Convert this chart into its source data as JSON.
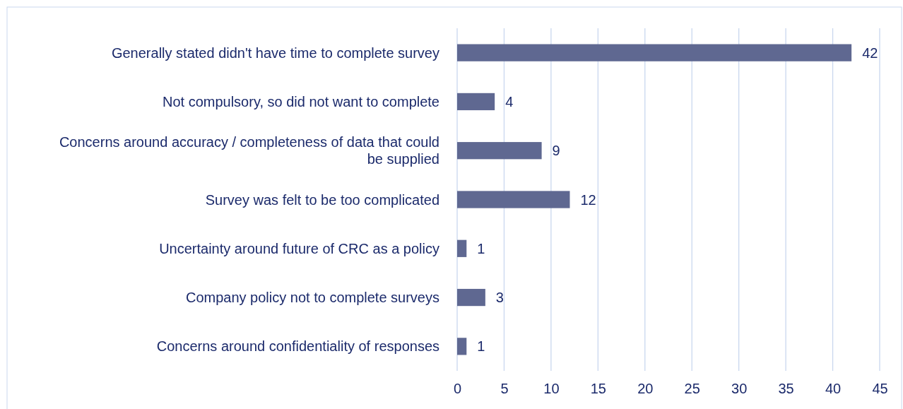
{
  "chart_data": {
    "type": "bar",
    "orientation": "horizontal",
    "categories": [
      "Generally stated didn't have time to complete survey",
      "Not compulsory, so did not want to complete",
      "Concerns around accuracy / completeness of data that could be supplied",
      "Survey was felt to be too complicated",
      "Uncertainty around future of CRC as a policy",
      "Company policy not to complete surveys",
      "Concerns around confidentiality of responses"
    ],
    "values": [
      42,
      4,
      9,
      12,
      1,
      3,
      1
    ],
    "color": "#5f6891",
    "xlim": [
      0,
      45
    ],
    "xticks": [
      0,
      5,
      10,
      15,
      20,
      25,
      30,
      35,
      40,
      45
    ],
    "grid": "x",
    "data_labels": true
  }
}
